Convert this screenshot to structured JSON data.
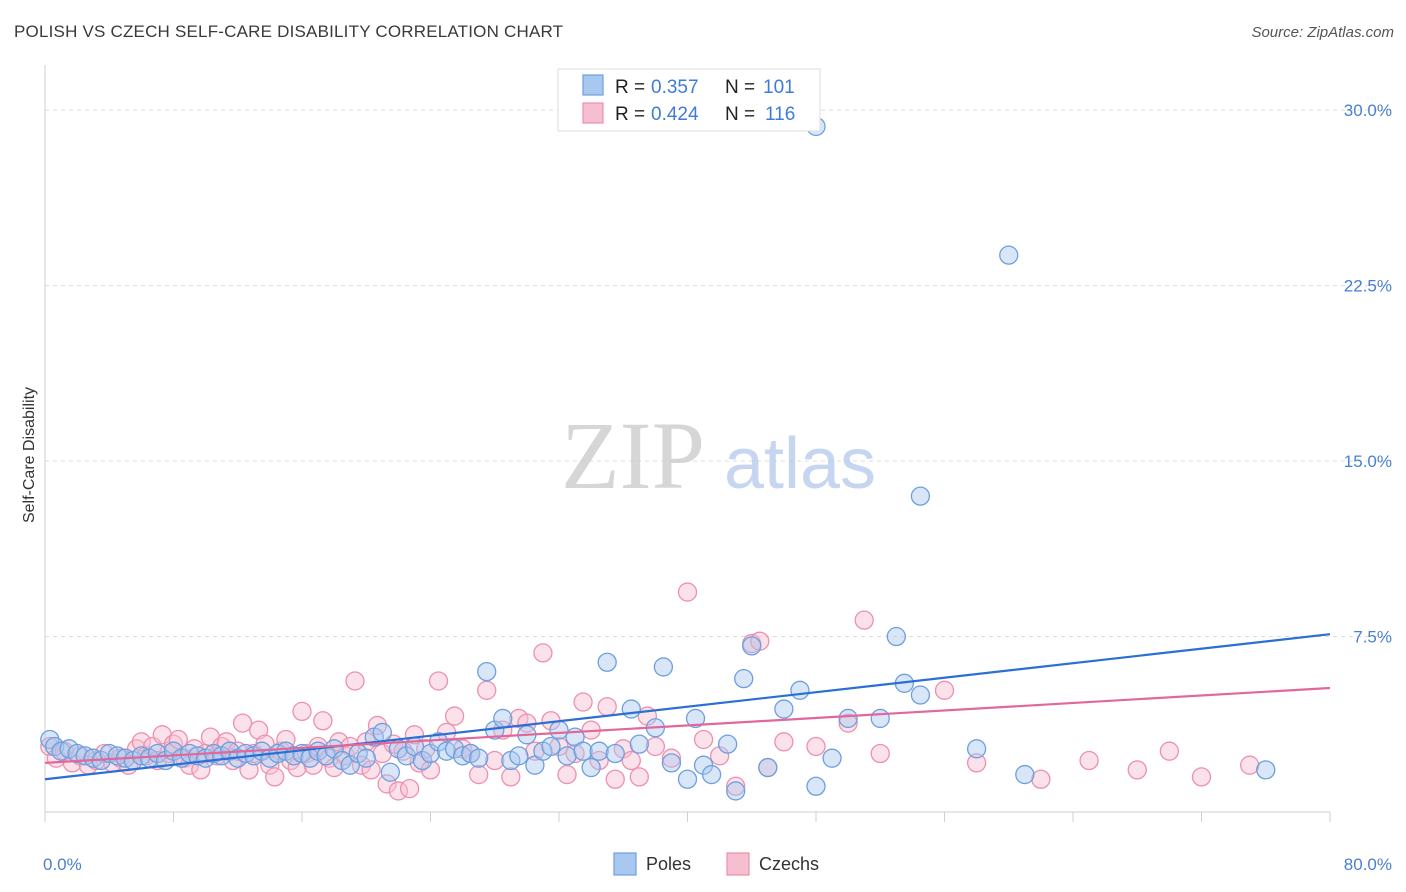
{
  "title": "POLISH VS CZECH SELF-CARE DISABILITY CORRELATION CHART",
  "source": "Source: ZipAtlas.com",
  "watermark": {
    "zip": "ZIP",
    "atlas": "atlas"
  },
  "legend": {
    "r_label": "R =",
    "n_label": "N =",
    "entries": [
      {
        "series": "Poles",
        "r": "0.357",
        "n": "101"
      },
      {
        "series": "Czechs",
        "r": "0.424",
        "n": "116"
      }
    ]
  },
  "colors": {
    "poles_fill": "#a9c8f0",
    "poles_stroke": "#6d9fdf",
    "poles_line": "#2b6fd4",
    "czechs_fill": "#f6bfd0",
    "czechs_stroke": "#ee8fae",
    "czechs_line": "#e2679a",
    "tick_label": "#4a7fd1",
    "grid": "#dcdcdc"
  },
  "chart_data": {
    "type": "scatter",
    "title": "POLISH VS CZECH SELF-CARE DISABILITY CORRELATION CHART",
    "xlabel": "",
    "ylabel": "Self-Care Disability",
    "xlim": [
      0,
      80
    ],
    "ylim": [
      0,
      31.5
    ],
    "x_tick_labels": [
      "0.0%",
      "80.0%"
    ],
    "y_ticks": [
      7.5,
      15.0,
      22.5,
      30.0
    ],
    "y_tick_labels": [
      "7.5%",
      "15.0%",
      "22.5%",
      "30.0%"
    ],
    "legend_position": "top-center",
    "grid": true,
    "series": [
      {
        "name": "Poles",
        "trend": {
          "x": [
            0,
            80
          ],
          "y": [
            1.4,
            7.6
          ]
        },
        "points": [
          [
            0.3,
            3.1
          ],
          [
            0.6,
            2.8
          ],
          [
            1.0,
            2.6
          ],
          [
            1.5,
            2.7
          ],
          [
            2.0,
            2.5
          ],
          [
            2.5,
            2.4
          ],
          [
            3.0,
            2.3
          ],
          [
            3.5,
            2.2
          ],
          [
            4.0,
            2.5
          ],
          [
            4.5,
            2.4
          ],
          [
            5.0,
            2.3
          ],
          [
            5.5,
            2.2
          ],
          [
            6.0,
            2.4
          ],
          [
            6.5,
            2.3
          ],
          [
            7.0,
            2.5
          ],
          [
            7.5,
            2.2
          ],
          [
            8.0,
            2.6
          ],
          [
            8.5,
            2.3
          ],
          [
            9.0,
            2.5
          ],
          [
            9.5,
            2.4
          ],
          [
            10.0,
            2.3
          ],
          [
            10.5,
            2.5
          ],
          [
            11.0,
            2.4
          ],
          [
            11.5,
            2.6
          ],
          [
            12.0,
            2.3
          ],
          [
            12.5,
            2.5
          ],
          [
            13.0,
            2.4
          ],
          [
            13.5,
            2.6
          ],
          [
            14.0,
            2.3
          ],
          [
            14.5,
            2.5
          ],
          [
            15.0,
            2.6
          ],
          [
            15.5,
            2.4
          ],
          [
            16.0,
            2.5
          ],
          [
            16.5,
            2.3
          ],
          [
            17.0,
            2.6
          ],
          [
            17.5,
            2.4
          ],
          [
            18.0,
            2.7
          ],
          [
            18.5,
            2.2
          ],
          [
            19.0,
            2.0
          ],
          [
            19.5,
            2.5
          ],
          [
            20.0,
            2.3
          ],
          [
            20.5,
            3.2
          ],
          [
            21.0,
            3.4
          ],
          [
            21.5,
            1.7
          ],
          [
            22.0,
            2.7
          ],
          [
            22.5,
            2.4
          ],
          [
            23.0,
            2.8
          ],
          [
            23.5,
            2.2
          ],
          [
            24.0,
            2.5
          ],
          [
            24.5,
            3.0
          ],
          [
            25.0,
            2.6
          ],
          [
            25.5,
            2.7
          ],
          [
            26.0,
            2.4
          ],
          [
            26.5,
            2.5
          ],
          [
            27.0,
            2.3
          ],
          [
            27.5,
            6.0
          ],
          [
            28.0,
            3.5
          ],
          [
            28.5,
            4.0
          ],
          [
            29.0,
            2.2
          ],
          [
            29.5,
            2.4
          ],
          [
            30.0,
            3.3
          ],
          [
            30.5,
            2.0
          ],
          [
            31.0,
            2.6
          ],
          [
            31.5,
            2.8
          ],
          [
            32.0,
            3.5
          ],
          [
            32.5,
            2.4
          ],
          [
            33.0,
            3.2
          ],
          [
            33.5,
            2.6
          ],
          [
            34.0,
            1.9
          ],
          [
            34.5,
            2.6
          ],
          [
            35.0,
            6.4
          ],
          [
            35.5,
            2.5
          ],
          [
            36.5,
            4.4
          ],
          [
            37.0,
            2.9
          ],
          [
            38.0,
            3.6
          ],
          [
            38.5,
            6.2
          ],
          [
            39.0,
            2.1
          ],
          [
            40.0,
            1.4
          ],
          [
            40.5,
            4.0
          ],
          [
            41.0,
            2.0
          ],
          [
            41.5,
            1.6
          ],
          [
            42.5,
            2.9
          ],
          [
            43.0,
            0.9
          ],
          [
            43.5,
            5.7
          ],
          [
            44.0,
            7.1
          ],
          [
            45.0,
            1.9
          ],
          [
            46.0,
            4.4
          ],
          [
            47.0,
            5.2
          ],
          [
            48.0,
            1.1
          ],
          [
            49.0,
            2.3
          ],
          [
            50.0,
            4.0
          ],
          [
            52.0,
            4.0
          ],
          [
            53.0,
            7.5
          ],
          [
            53.5,
            5.5
          ],
          [
            54.5,
            5.0
          ],
          [
            48.0,
            29.3
          ],
          [
            54.5,
            13.5
          ],
          [
            60.0,
            23.8
          ],
          [
            58.0,
            2.7
          ],
          [
            61.0,
            1.6
          ],
          [
            76.0,
            1.8
          ]
        ]
      },
      {
        "name": "Czechs",
        "trend": {
          "x": [
            0,
            80
          ],
          "y": [
            2.1,
            5.3
          ]
        },
        "points": [
          [
            0.3,
            2.8
          ],
          [
            0.7,
            2.3
          ],
          [
            1.2,
            2.6
          ],
          [
            1.7,
            2.1
          ],
          [
            2.2,
            2.4
          ],
          [
            2.7,
            2.0
          ],
          [
            3.2,
            2.2
          ],
          [
            3.7,
            2.5
          ],
          [
            4.2,
            2.1
          ],
          [
            4.7,
            2.3
          ],
          [
            5.2,
            2.0
          ],
          [
            5.7,
            2.7
          ],
          [
            6.0,
            3.0
          ],
          [
            6.3,
            2.4
          ],
          [
            6.7,
            2.8
          ],
          [
            7.0,
            2.2
          ],
          [
            7.3,
            3.3
          ],
          [
            7.7,
            2.5
          ],
          [
            8.0,
            2.9
          ],
          [
            8.3,
            3.1
          ],
          [
            8.7,
            2.3
          ],
          [
            9.0,
            2.0
          ],
          [
            9.3,
            2.7
          ],
          [
            9.7,
            1.8
          ],
          [
            10.0,
            2.5
          ],
          [
            10.3,
            3.2
          ],
          [
            10.7,
            2.4
          ],
          [
            11.0,
            2.8
          ],
          [
            11.3,
            3.0
          ],
          [
            11.7,
            2.2
          ],
          [
            12.0,
            2.6
          ],
          [
            12.3,
            3.8
          ],
          [
            12.7,
            1.8
          ],
          [
            13.0,
            2.5
          ],
          [
            13.3,
            3.5
          ],
          [
            13.7,
            2.9
          ],
          [
            14.0,
            2.0
          ],
          [
            14.3,
            1.5
          ],
          [
            14.7,
            2.6
          ],
          [
            15.0,
            3.1
          ],
          [
            15.3,
            2.2
          ],
          [
            15.7,
            1.9
          ],
          [
            16.0,
            4.3
          ],
          [
            16.3,
            2.5
          ],
          [
            16.7,
            2.0
          ],
          [
            17.0,
            2.8
          ],
          [
            17.3,
            3.9
          ],
          [
            17.7,
            2.3
          ],
          [
            18.0,
            1.9
          ],
          [
            18.3,
            3.0
          ],
          [
            18.7,
            2.4
          ],
          [
            19.0,
            2.8
          ],
          [
            19.3,
            5.6
          ],
          [
            19.7,
            2.0
          ],
          [
            20.0,
            3.0
          ],
          [
            20.3,
            1.8
          ],
          [
            20.7,
            3.7
          ],
          [
            21.0,
            2.5
          ],
          [
            21.3,
            1.2
          ],
          [
            21.7,
            2.9
          ],
          [
            22.0,
            0.9
          ],
          [
            22.3,
            2.6
          ],
          [
            22.7,
            1.0
          ],
          [
            23.0,
            3.3
          ],
          [
            23.3,
            2.1
          ],
          [
            23.7,
            2.7
          ],
          [
            24.0,
            1.8
          ],
          [
            24.5,
            5.6
          ],
          [
            25.0,
            3.4
          ],
          [
            25.5,
            4.1
          ],
          [
            26.0,
            2.7
          ],
          [
            26.5,
            2.5
          ],
          [
            27.0,
            1.6
          ],
          [
            27.5,
            5.2
          ],
          [
            28.0,
            2.2
          ],
          [
            28.5,
            3.5
          ],
          [
            29.0,
            1.5
          ],
          [
            29.5,
            4.0
          ],
          [
            30.0,
            3.8
          ],
          [
            30.5,
            2.6
          ],
          [
            31.0,
            6.8
          ],
          [
            31.5,
            3.9
          ],
          [
            32.0,
            2.8
          ],
          [
            32.5,
            1.6
          ],
          [
            33.0,
            2.5
          ],
          [
            33.5,
            4.7
          ],
          [
            34.0,
            3.5
          ],
          [
            34.5,
            2.2
          ],
          [
            35.0,
            4.5
          ],
          [
            35.5,
            1.4
          ],
          [
            36.0,
            2.7
          ],
          [
            36.5,
            2.2
          ],
          [
            37.0,
            1.5
          ],
          [
            37.5,
            4.1
          ],
          [
            38.0,
            2.8
          ],
          [
            39.0,
            2.3
          ],
          [
            40.0,
            9.4
          ],
          [
            41.0,
            3.1
          ],
          [
            42.0,
            2.4
          ],
          [
            43.0,
            1.1
          ],
          [
            44.0,
            7.2
          ],
          [
            44.5,
            7.3
          ],
          [
            45.0,
            1.9
          ],
          [
            46.0,
            3.0
          ],
          [
            48.0,
            2.8
          ],
          [
            50.0,
            3.8
          ],
          [
            51.0,
            8.2
          ],
          [
            52.0,
            2.5
          ],
          [
            56.0,
            5.2
          ],
          [
            58.0,
            2.1
          ],
          [
            62.0,
            1.4
          ],
          [
            65.0,
            2.2
          ],
          [
            68.0,
            1.8
          ],
          [
            70.0,
            2.6
          ],
          [
            72.0,
            1.5
          ],
          [
            75.0,
            2.0
          ]
        ]
      }
    ]
  }
}
